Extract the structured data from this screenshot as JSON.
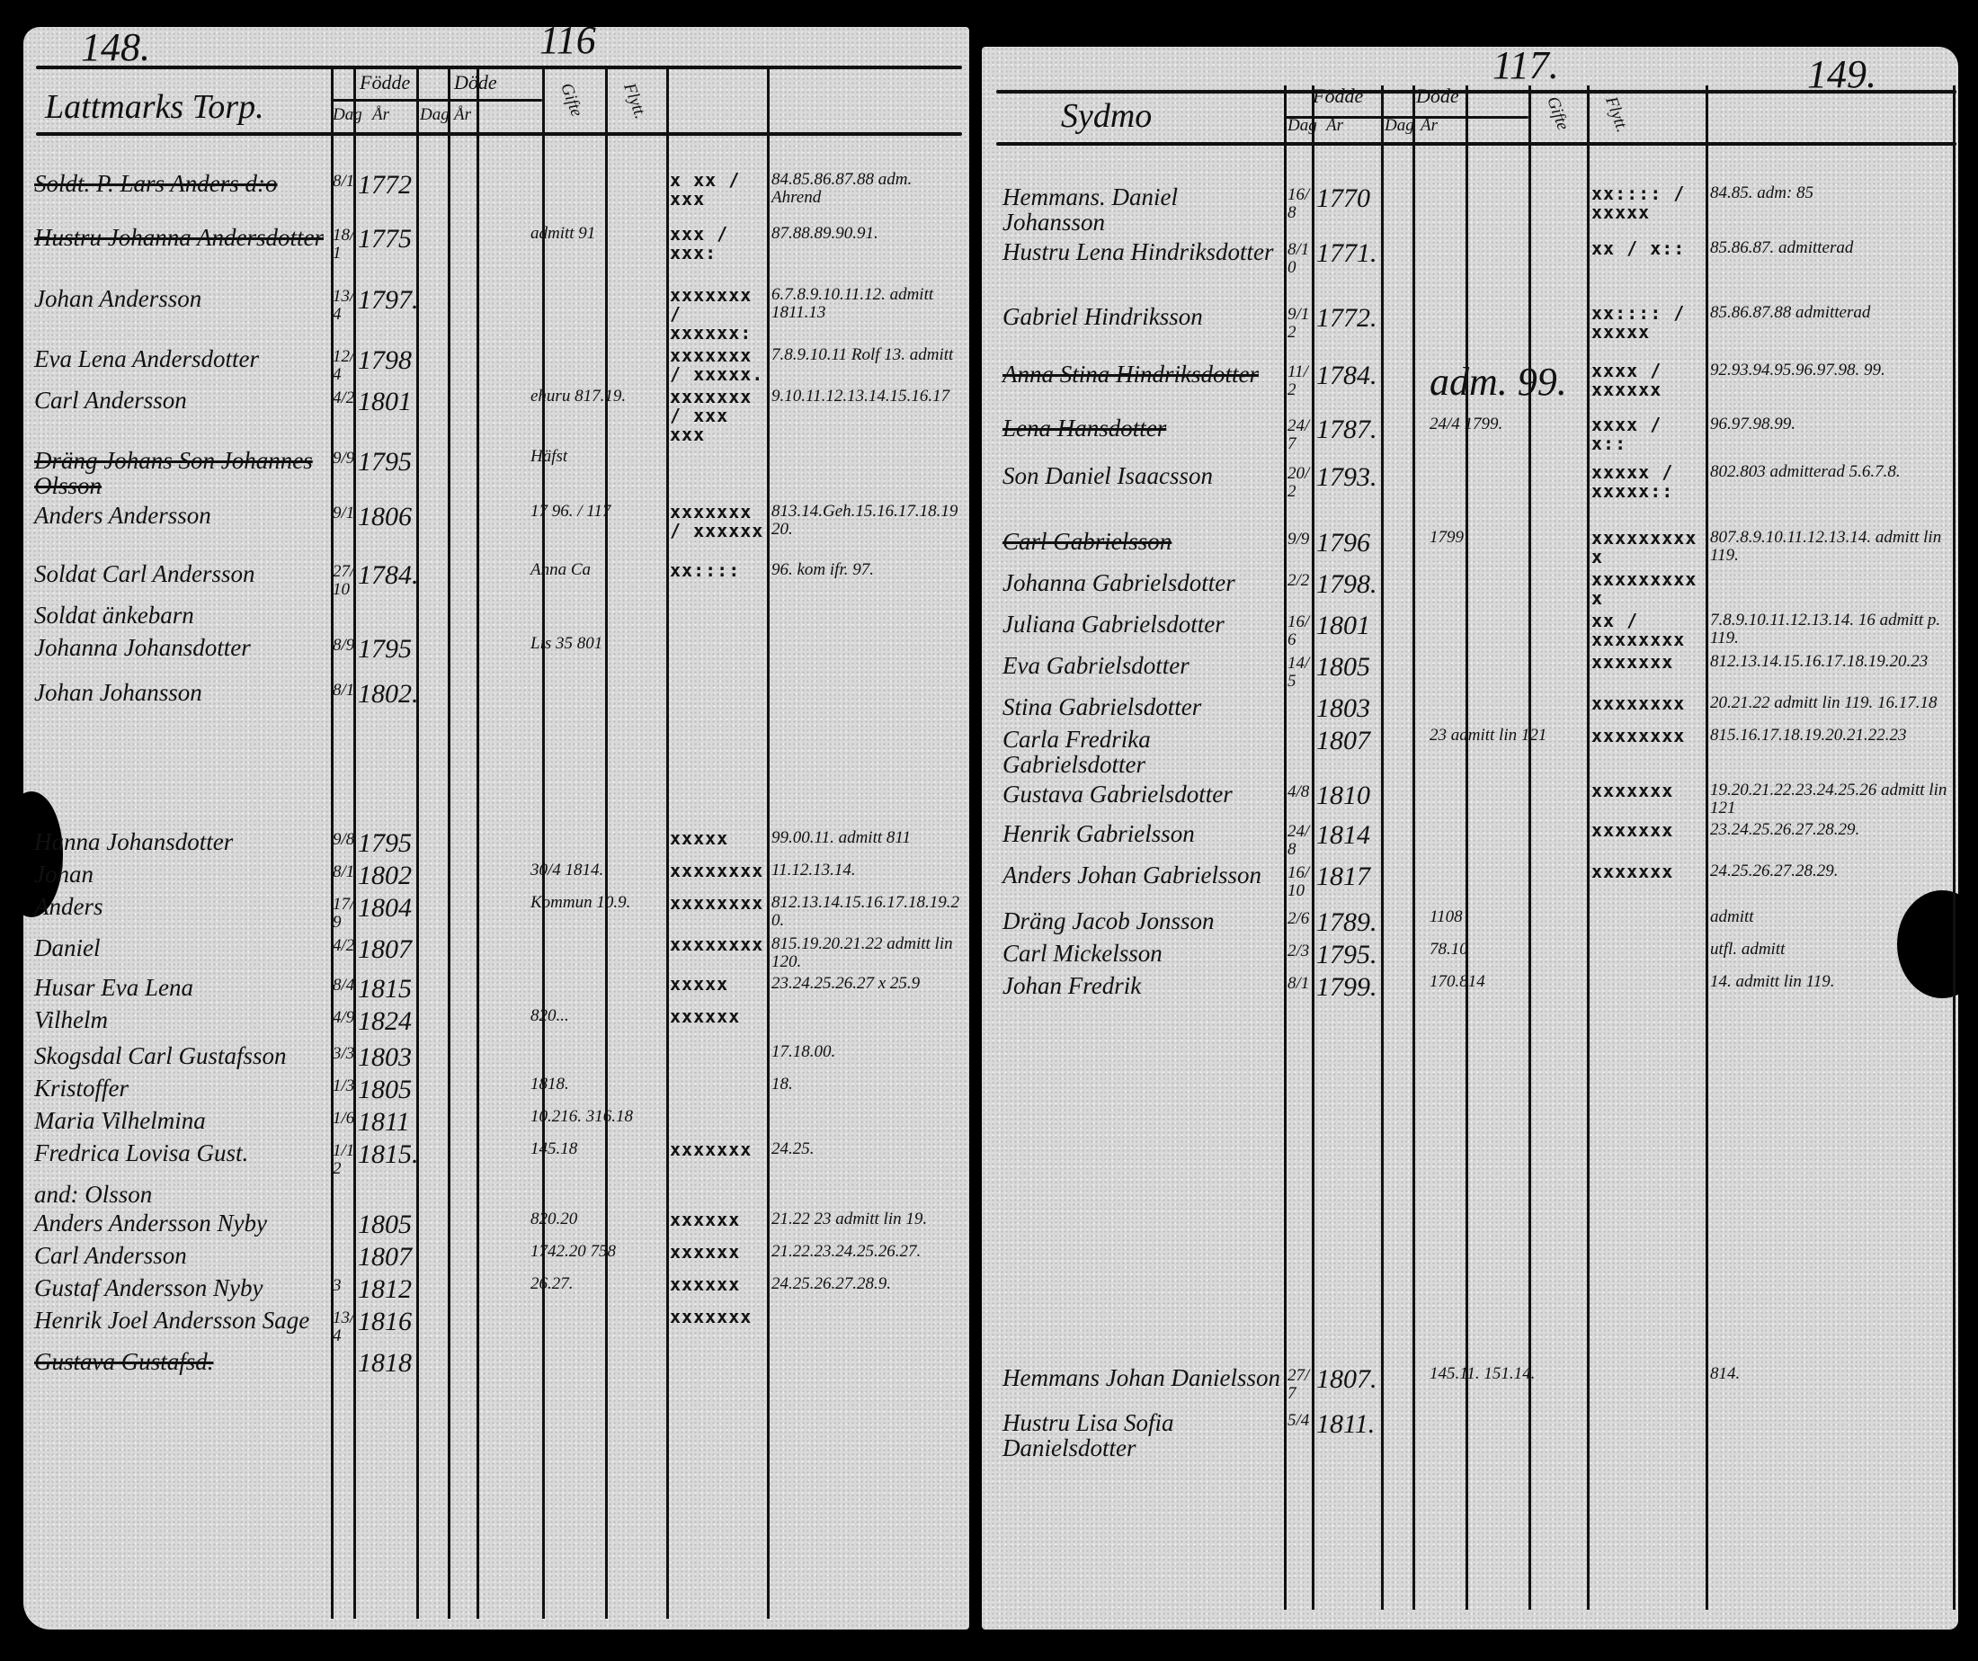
{
  "left": {
    "page_number": "148.",
    "folio": "116",
    "place": "Lattmarks Torp.",
    "headers": {
      "born": "Födde",
      "died": "Döde",
      "day": "Dag",
      "year": "År",
      "col5": "Gifte",
      "col6": "Flytt."
    },
    "rows": [
      {
        "name": "Soldt. P. Lars Anders d:o",
        "struck": true,
        "dm": "8/1",
        "year": "1772",
        "extra": "",
        "marks": "x xx / xxx",
        "notes": "84.85.86.87.88 adm. Ahrend"
      },
      {
        "name": "Hustru Johanna Andersdotter",
        "struck": true,
        "dm": "18/1",
        "year": "1775",
        "extra": "admitt 91",
        "marks": "xxx / xxx:",
        "notes": "87.88.89.90.91."
      },
      {
        "name": "Johan Andersson",
        "struck": false,
        "dm": "13/4",
        "year": "1797.",
        "extra": "",
        "marks": "xxxxxxx / xxxxxx:",
        "notes": "6.7.8.9.10.11.12. admitt 1811.13"
      },
      {
        "name": "Eva Lena Andersdotter",
        "struck": false,
        "dm": "12/4",
        "year": "1798",
        "extra": "",
        "marks": "xxxxxxx / xxxxx.",
        "notes": "7.8.9.10.11 Rolf 13. admitt"
      },
      {
        "name": "Carl Andersson",
        "struck": false,
        "dm": "4/2",
        "year": "1801",
        "extra": "ehuru 817.19.",
        "marks": "xxxxxxx / xxx xxx",
        "notes": "9.10.11.12.13.14.15.16.17"
      },
      {
        "name": "Dräng Johans Son Johannes Olsson",
        "struck": true,
        "dm": "9/9",
        "year": "1795",
        "extra": "Häfst",
        "marks": "",
        "notes": ""
      },
      {
        "name": "Anders Andersson",
        "struck": false,
        "dm": "9/1",
        "year": "1806",
        "extra": "17   96. / 117",
        "marks": "xxxxxxx / xxxxxx",
        "notes": "813.14.Geh.15.16.17.18.19 20."
      },
      {
        "name": "Soldat Carl Andersson",
        "struck": false,
        "dm": "27/10",
        "year": "1784.",
        "extra": "Anna Ca",
        "marks": "xx::::",
        "notes": "96. kom ifr. 97."
      },
      {
        "name": "Soldat änkebarn",
        "struck": false,
        "dm": "",
        "year": "",
        "extra": "",
        "marks": "",
        "notes": ""
      },
      {
        "name": "Johanna Johansdotter",
        "struck": false,
        "dm": "8/9",
        "year": "1795",
        "extra": "Lis 35 801",
        "marks": "",
        "notes": ""
      },
      {
        "name": "Johan Johansson",
        "struck": false,
        "dm": "8/1",
        "year": "1802.",
        "extra": "",
        "marks": "",
        "notes": ""
      },
      {
        "name": "Hanna Johansdotter",
        "struck": false,
        "dm": "9/8",
        "year": "1795",
        "extra": "",
        "marks": "xxxxx",
        "notes": "99.00.11. admitt 811"
      },
      {
        "name": "Johan",
        "struck": false,
        "dm": "8/1",
        "year": "1802",
        "extra": "30/4 1814.",
        "marks": "xxxxxxxx",
        "notes": "11.12.13.14."
      },
      {
        "name": "Anders",
        "struck": false,
        "dm": "17/9",
        "year": "1804",
        "extra": "Kommun 10.9.",
        "marks": "xxxxxxxx",
        "notes": "812.13.14.15.16.17.18.19.20."
      },
      {
        "name": "Daniel",
        "struck": false,
        "dm": "4/2",
        "year": "1807",
        "extra": "",
        "marks": "xxxxxxxx",
        "notes": "815.19.20.21.22 admitt lin 120."
      },
      {
        "name": "Husar Eva Lena",
        "struck": false,
        "dm": "8/4",
        "year": "1815",
        "extra": "",
        "marks": "xxxxx",
        "notes": "23.24.25.26.27 x 25.9"
      },
      {
        "name": "Vilhelm",
        "struck": false,
        "dm": "4/9",
        "year": "1824",
        "extra": "820...",
        "marks": "xxxxxx",
        "notes": ""
      },
      {
        "name": "Skogsdal Carl Gustafsson",
        "struck": false,
        "dm": "3/3",
        "year": "1803",
        "extra": "",
        "marks": "",
        "notes": "17.18.00."
      },
      {
        "name": "Kristoffer",
        "struck": false,
        "dm": "1/3",
        "year": "1805",
        "extra": "1818.",
        "marks": "",
        "notes": "18."
      },
      {
        "name": "Maria Vilhelmina",
        "struck": false,
        "dm": "1/6",
        "year": "1811",
        "extra": "10.216.  316.18",
        "marks": "",
        "notes": ""
      },
      {
        "name": "Fredrica Lovisa Gust.",
        "struck": false,
        "dm": "1/12",
        "year": "1815.",
        "extra": "145.18",
        "marks": "xxxxxxx",
        "notes": "24.25."
      },
      {
        "name": "and: Olsson",
        "struck": false,
        "dm": "",
        "year": "",
        "extra": "",
        "marks": "",
        "notes": ""
      },
      {
        "name": "Anders Andersson Nyby",
        "struck": false,
        "dm": "",
        "year": "1805",
        "extra": "820.20",
        "marks": "xxxxxx",
        "notes": "21.22 23 admitt lin 19."
      },
      {
        "name": "Carl Andersson",
        "struck": false,
        "dm": "",
        "year": "1807",
        "extra": "1742.20  758",
        "marks": "xxxxxx",
        "notes": "21.22.23.24.25.26.27."
      },
      {
        "name": "Gustaf Andersson Nyby",
        "struck": false,
        "dm": "3",
        "year": "1812",
        "extra": "26.27.",
        "marks": "xxxxxx",
        "notes": "24.25.26.27.28.9."
      },
      {
        "name": "Henrik Joel Andersson Sage",
        "struck": false,
        "dm": "13/4",
        "year": "1816",
        "extra": "",
        "marks": "xxxxxxx",
        "notes": ""
      },
      {
        "name": "Gustava Gustafsd.",
        "struck": true,
        "dm": "",
        "year": "1818",
        "extra": "",
        "marks": "",
        "notes": ""
      }
    ]
  },
  "right": {
    "page_number": "149.",
    "folio": "117.",
    "place": "Sydmo",
    "headers": {
      "born": "Födde",
      "died": "Döde",
      "day": "Dag",
      "year": "År",
      "col5": "Gifte",
      "col6": "Flytt."
    },
    "rows": [
      {
        "name": "Hemmans. Daniel Johansson",
        "struck": false,
        "dm": "16/8",
        "year": "1770",
        "extra": "",
        "marks": "xx:::: / xxxxx",
        "notes": "84.85. adm: 85"
      },
      {
        "name": "Hustru Lena Hindriksdotter",
        "struck": false,
        "dm": "8/10",
        "year": "1771.",
        "extra": "",
        "marks": "xx / x::",
        "notes": "85.86.87. admitterad"
      },
      {
        "name": "Gabriel Hindriksson",
        "struck": false,
        "dm": "9/12",
        "year": "1772.",
        "extra": "",
        "marks": "xx:::: / xxxxx",
        "notes": "85.86.87.88 admitterad"
      },
      {
        "name": "Anna Stina Hindriksdotter",
        "struck": true,
        "dm": "11/2",
        "year": "1784.",
        "extra": "adm. 99.",
        "marks": "xxxx / xxxxxx",
        "notes": "92.93.94.95.96.97.98. 99."
      },
      {
        "name": "Lena Hansdotter",
        "struck": true,
        "dm": "24/7",
        "year": "1787.",
        "extra": "24/4 1799.",
        "marks": "xxxx / x::",
        "notes": "96.97.98.99."
      },
      {
        "name": "Son Daniel Isaacsson",
        "struck": false,
        "dm": "20/2",
        "year": "1793.",
        "extra": "",
        "marks": "xxxxx / xxxxx::",
        "notes": "802.803 admitterad 5.6.7.8."
      },
      {
        "name": "Carl Gabrielsson",
        "struck": true,
        "dm": "9/9",
        "year": "1796",
        "extra": "1799",
        "marks": "xxxxxxxxxx",
        "notes": "807.8.9.10.11.12.13.14. admitt lin 119."
      },
      {
        "name": "Johanna Gabrielsdotter",
        "struck": false,
        "dm": "2/2",
        "year": "1798.",
        "extra": "",
        "marks": "xxxxxxxxxx",
        "notes": ""
      },
      {
        "name": "Juliana Gabrielsdotter",
        "struck": false,
        "dm": "16/6",
        "year": "1801",
        "extra": "",
        "marks": "xx / xxxxxxxx",
        "notes": "7.8.9.10.11.12.13.14. 16 admitt p. 119."
      },
      {
        "name": "Eva Gabrielsdotter",
        "struck": false,
        "dm": "14/5",
        "year": "1805",
        "extra": "",
        "marks": "xxxxxxx",
        "notes": "812.13.14.15.16.17.18.19.20.23"
      },
      {
        "name": "Stina Gabrielsdotter",
        "struck": false,
        "dm": "",
        "year": "1803",
        "extra": "",
        "marks": "xxxxxxxx",
        "notes": "20.21.22 admitt lin 119. 16.17.18"
      },
      {
        "name": "Carla Fredrika Gabrielsdotter",
        "struck": false,
        "dm": "",
        "year": "1807",
        "extra": "23  admitt lin 121",
        "marks": "xxxxxxxx",
        "notes": "815.16.17.18.19.20.21.22.23"
      },
      {
        "name": "Gustava Gabrielsdotter",
        "struck": false,
        "dm": "4/8",
        "year": "1810",
        "extra": "",
        "marks": "xxxxxxx",
        "notes": "19.20.21.22.23.24.25.26 admitt lin 121"
      },
      {
        "name": "Henrik Gabrielsson",
        "struck": false,
        "dm": "24/8",
        "year": "1814",
        "extra": "",
        "marks": "xxxxxxx",
        "notes": "23.24.25.26.27.28.29."
      },
      {
        "name": "Anders Johan Gabrielsson",
        "struck": false,
        "dm": "16/10",
        "year": "1817",
        "extra": "",
        "marks": "xxxxxxx",
        "notes": "24.25.26.27.28.29."
      },
      {
        "name": "Dräng Jacob Jonsson",
        "struck": false,
        "dm": "2/6",
        "year": "1789.",
        "extra": "1108",
        "marks": "",
        "notes": "admitt"
      },
      {
        "name": "Carl Mickelsson",
        "struck": false,
        "dm": "2/3",
        "year": "1795.",
        "extra": "78.10",
        "marks": "",
        "notes": "utfl. admitt"
      },
      {
        "name": "Johan Fredrik",
        "struck": false,
        "dm": "8/1",
        "year": "1799.",
        "extra": "170.814",
        "marks": "",
        "notes": "14. admitt lin 119."
      },
      {
        "name": "Hemmans Johan Danielsson",
        "struck": false,
        "dm": "27/7",
        "year": "1807.",
        "extra": "145.11.   151.14.",
        "marks": "",
        "notes": "814."
      },
      {
        "name": "Hustru Lisa Sofia Danielsdotter",
        "struck": false,
        "dm": "5/4",
        "year": "1811.",
        "extra": "",
        "marks": "",
        "notes": ""
      }
    ]
  }
}
